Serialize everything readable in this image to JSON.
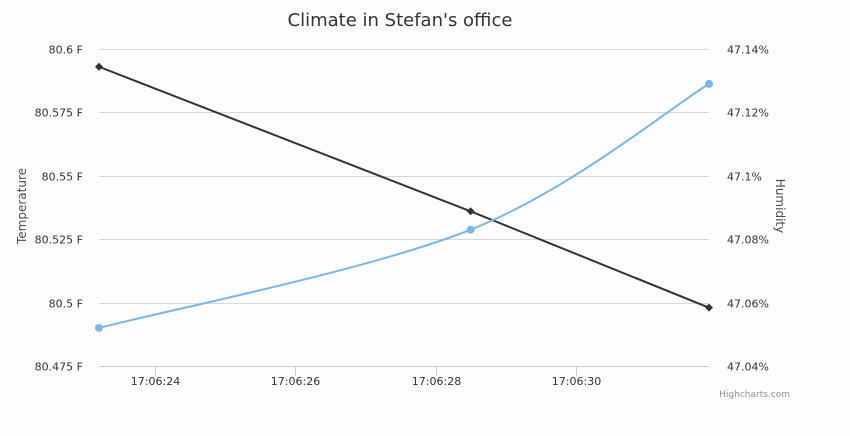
{
  "chart_data": {
    "type": "line",
    "title": "Climate in Stefan's office",
    "x": [
      "17:06:23.2",
      "17:06:28.5",
      "17:06:31.9"
    ],
    "x_ticks": [
      "17:06:24",
      "17:06:26",
      "17:06:28",
      "17:06:30"
    ],
    "x_range": [
      23.2,
      31.9
    ],
    "x_tick_values": [
      24,
      26,
      28,
      30
    ],
    "y_left": {
      "label": "Temperature",
      "ticks": [
        "80.6 F",
        "80.575 F",
        "80.55 F",
        "80.525 F",
        "80.5 F",
        "80.475 F"
      ],
      "tick_values": [
        80.6,
        80.575,
        80.55,
        80.525,
        80.5,
        80.475
      ],
      "range": [
        80.475,
        80.6
      ]
    },
    "y_right": {
      "label": "Humidity",
      "ticks": [
        "47.14%",
        "47.12%",
        "47.1%",
        "47.08%",
        "47.06%",
        "47.04%"
      ],
      "tick_values": [
        47.14,
        47.12,
        47.1,
        47.08,
        47.06,
        47.04
      ],
      "range": [
        47.04,
        47.14
      ]
    },
    "series": [
      {
        "axis": "left",
        "color": "#333333",
        "marker": "diamond",
        "x": [
          23.2,
          28.5,
          31.9
        ],
        "values": [
          80.593,
          80.536,
          80.498
        ]
      },
      {
        "axis": "right",
        "color": "#7cb5ec",
        "marker": "circle",
        "x": [
          23.2,
          28.5,
          31.9
        ],
        "values": [
          47.052,
          47.083,
          47.129
        ]
      }
    ],
    "grid": true,
    "legend": "none"
  },
  "credits": "Highcharts.com"
}
